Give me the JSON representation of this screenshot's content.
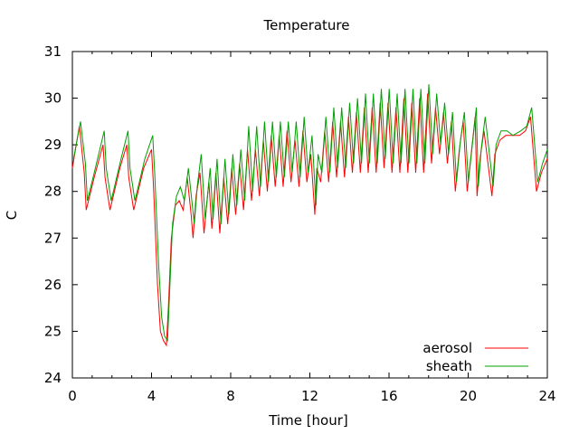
{
  "chart_data": {
    "type": "line",
    "title": "Temperature",
    "xlabel": "Time [hour]",
    "ylabel": "C",
    "xlim": [
      0,
      24
    ],
    "ylim": [
      24,
      31
    ],
    "xticks": [
      0,
      4,
      8,
      12,
      16,
      20,
      24
    ],
    "yticks": [
      24,
      25,
      26,
      27,
      28,
      29,
      30,
      31
    ],
    "grid": false,
    "legend_position": "bottom-right",
    "series": [
      {
        "name": "aerosol",
        "color": "#ff0000",
        "x": [
          0.0,
          0.35,
          0.6,
          0.7,
          1.1,
          1.55,
          1.65,
          1.9,
          2.4,
          2.75,
          2.85,
          3.1,
          3.6,
          4.0,
          4.1,
          4.3,
          4.45,
          4.6,
          4.75,
          4.85,
          5.0,
          5.2,
          5.4,
          5.6,
          5.8,
          6.0,
          6.1,
          6.25,
          6.45,
          6.65,
          6.9,
          7.05,
          7.25,
          7.45,
          7.65,
          7.85,
          8.05,
          8.25,
          8.45,
          8.65,
          8.85,
          9.05,
          9.25,
          9.45,
          9.65,
          9.85,
          10.05,
          10.25,
          10.45,
          10.65,
          10.85,
          11.05,
          11.25,
          11.45,
          11.65,
          11.85,
          12.05,
          12.25,
          12.35,
          12.55,
          12.75,
          12.95,
          13.15,
          13.35,
          13.55,
          13.75,
          13.95,
          14.15,
          14.35,
          14.55,
          14.75,
          14.95,
          15.15,
          15.35,
          15.55,
          15.75,
          15.95,
          16.15,
          16.35,
          16.55,
          16.75,
          16.95,
          17.15,
          17.35,
          17.55,
          17.75,
          17.95,
          18.15,
          18.35,
          18.55,
          18.75,
          18.95,
          19.15,
          19.35,
          19.55,
          19.75,
          19.95,
          20.35,
          20.45,
          20.6,
          20.8,
          21.2,
          21.35,
          21.6,
          21.9,
          22.2,
          22.6,
          22.9,
          23.15,
          23.3,
          23.45,
          23.7,
          24.0
        ],
        "y": [
          28.5,
          29.4,
          28.4,
          27.6,
          28.3,
          29.0,
          28.3,
          27.6,
          28.5,
          29.0,
          28.3,
          27.6,
          28.5,
          28.9,
          28.1,
          26.0,
          25.0,
          24.8,
          24.7,
          25.5,
          27.0,
          27.7,
          27.8,
          27.6,
          28.3,
          27.5,
          27.0,
          27.9,
          28.4,
          27.1,
          28.2,
          27.2,
          28.4,
          27.1,
          28.3,
          27.3,
          28.5,
          27.5,
          28.6,
          27.6,
          28.9,
          27.8,
          28.9,
          27.9,
          29.1,
          28.0,
          29.2,
          28.1,
          29.2,
          28.1,
          29.3,
          28.2,
          29.1,
          28.1,
          29.3,
          28.2,
          28.8,
          27.5,
          28.5,
          28.2,
          29.3,
          28.2,
          29.5,
          28.3,
          29.5,
          28.3,
          29.6,
          28.4,
          29.7,
          28.4,
          29.8,
          28.4,
          29.8,
          28.4,
          29.9,
          28.5,
          29.9,
          28.4,
          29.8,
          28.4,
          30.0,
          28.4,
          29.9,
          28.4,
          30.0,
          28.4,
          30.1,
          28.6,
          29.8,
          28.8,
          29.7,
          28.6,
          29.5,
          28.0,
          28.9,
          29.5,
          28.0,
          29.6,
          27.9,
          28.7,
          29.3,
          27.9,
          28.8,
          29.1,
          29.2,
          29.2,
          29.2,
          29.3,
          29.6,
          28.8,
          28.0,
          28.4,
          28.7
        ],
        "x_shift": 0
      },
      {
        "name": "sheath",
        "color": "#00a000",
        "x": [
          0.0,
          0.35,
          0.6,
          0.7,
          1.1,
          1.55,
          1.65,
          1.9,
          2.4,
          2.75,
          2.85,
          3.1,
          3.6,
          4.0,
          4.1,
          4.3,
          4.45,
          4.6,
          4.75,
          4.85,
          5.0,
          5.2,
          5.4,
          5.6,
          5.8,
          6.0,
          6.1,
          6.25,
          6.45,
          6.65,
          6.9,
          7.05,
          7.25,
          7.45,
          7.65,
          7.85,
          8.05,
          8.25,
          8.45,
          8.65,
          8.85,
          9.05,
          9.25,
          9.45,
          9.65,
          9.85,
          10.05,
          10.25,
          10.45,
          10.65,
          10.85,
          11.05,
          11.25,
          11.45,
          11.65,
          11.85,
          12.05,
          12.25,
          12.35,
          12.55,
          12.75,
          12.95,
          13.15,
          13.35,
          13.55,
          13.75,
          13.95,
          14.15,
          14.35,
          14.55,
          14.75,
          14.95,
          15.15,
          15.35,
          15.55,
          15.75,
          15.95,
          16.15,
          16.35,
          16.55,
          16.75,
          16.95,
          17.15,
          17.35,
          17.55,
          17.75,
          17.95,
          18.15,
          18.35,
          18.55,
          18.75,
          18.95,
          19.15,
          19.35,
          19.55,
          19.75,
          19.95,
          20.35,
          20.45,
          20.6,
          20.8,
          21.2,
          21.35,
          21.6,
          21.9,
          22.2,
          22.6,
          22.9,
          23.15,
          23.3,
          23.45,
          23.7,
          24.0
        ],
        "y": [
          28.7,
          29.5,
          28.6,
          27.8,
          28.5,
          29.3,
          28.5,
          27.8,
          28.7,
          29.3,
          28.5,
          27.8,
          28.7,
          29.2,
          28.4,
          26.4,
          25.3,
          24.9,
          24.8,
          25.8,
          27.3,
          27.9,
          28.1,
          27.8,
          28.5,
          27.7,
          27.3,
          28.1,
          28.8,
          27.4,
          28.5,
          27.4,
          28.7,
          27.3,
          28.7,
          27.5,
          28.8,
          27.7,
          28.9,
          27.8,
          29.4,
          28.0,
          29.4,
          28.1,
          29.5,
          28.2,
          29.5,
          28.3,
          29.5,
          28.3,
          29.5,
          28.4,
          29.5,
          28.3,
          29.6,
          28.4,
          29.2,
          27.7,
          28.8,
          28.4,
          29.6,
          28.4,
          29.8,
          28.5,
          29.8,
          28.5,
          29.9,
          28.6,
          30.0,
          28.6,
          30.1,
          28.6,
          30.1,
          28.6,
          30.2,
          28.7,
          30.2,
          28.6,
          30.1,
          28.6,
          30.2,
          28.6,
          30.2,
          28.6,
          30.2,
          28.6,
          30.3,
          28.8,
          30.1,
          29.0,
          29.9,
          28.8,
          29.7,
          28.2,
          29.1,
          29.7,
          28.2,
          29.8,
          28.1,
          28.9,
          29.6,
          28.1,
          29.0,
          29.3,
          29.3,
          29.2,
          29.3,
          29.4,
          29.8,
          29.0,
          28.2,
          28.6,
          28.9
        ],
        "x_shift": 0.06
      }
    ]
  }
}
